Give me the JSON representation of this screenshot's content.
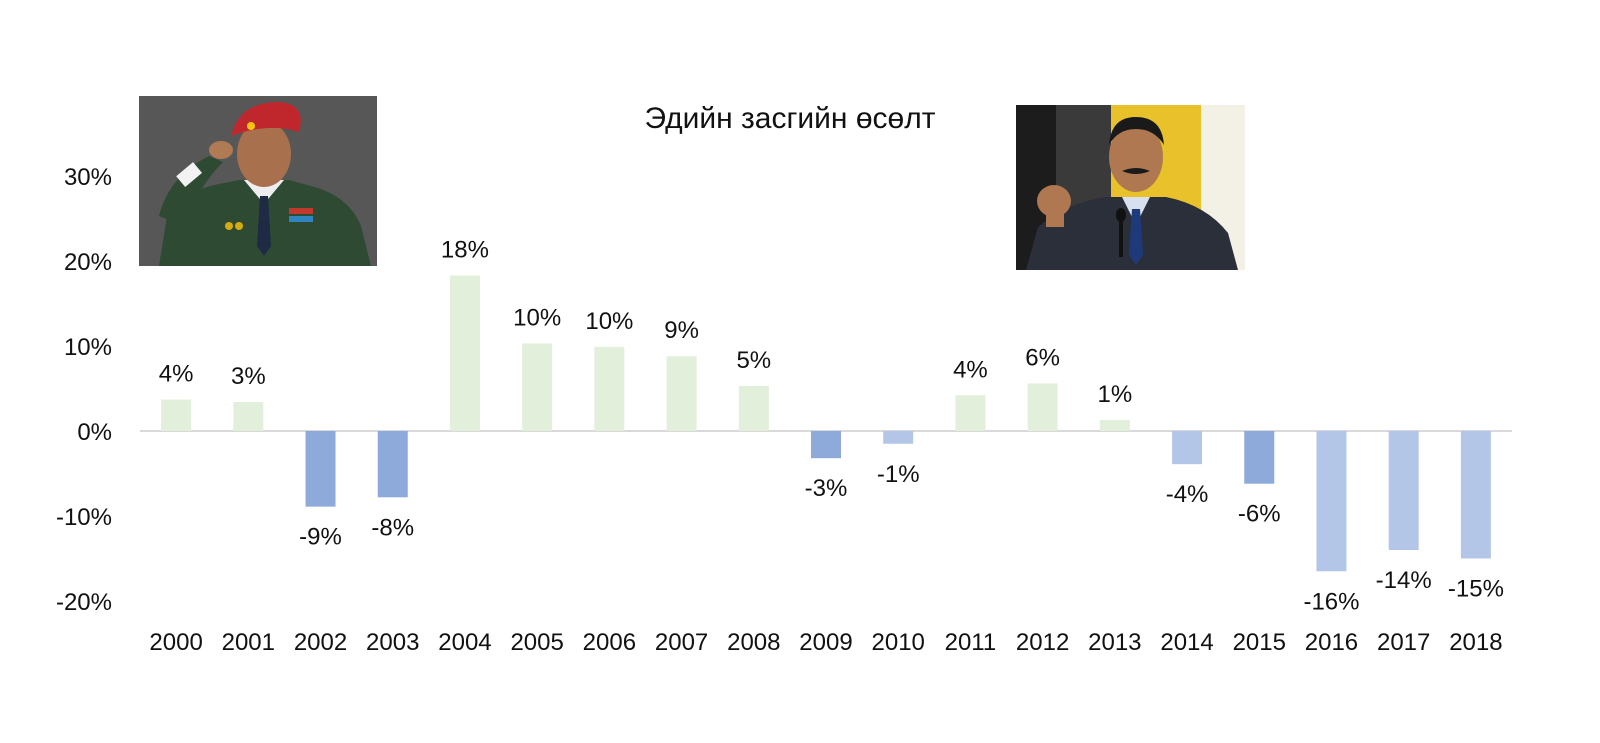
{
  "chart_data": {
    "type": "bar",
    "title": "Эдийн засгийн өсөлт",
    "xlabel": "",
    "ylabel": "",
    "ylim": [
      -20,
      30
    ],
    "yticks": [
      30,
      20,
      10,
      0,
      -10,
      -20
    ],
    "ytick_labels": [
      "30%",
      "20%",
      "10%",
      "0%",
      "-10%",
      "-20%"
    ],
    "categories": [
      "2000",
      "2001",
      "2002",
      "2003",
      "2004",
      "2005",
      "2006",
      "2007",
      "2008",
      "2009",
      "2010",
      "2011",
      "2012",
      "2013",
      "2014",
      "2015",
      "2016",
      "2017",
      "2018"
    ],
    "values": [
      3.7,
      3.4,
      -8.9,
      -7.8,
      18.3,
      10.3,
      9.9,
      8.8,
      5.3,
      -3.2,
      -1.5,
      4.2,
      5.6,
      1.3,
      -3.9,
      -6.2,
      -16.5,
      -14.0,
      -15.0
    ],
    "data_labels": [
      "4%",
      "3%",
      "-9%",
      "-8%",
      "18%",
      "10%",
      "10%",
      "9%",
      "5%",
      "-3%",
      "-1%",
      "4%",
      "6%",
      "1%",
      "-4%",
      "-6%",
      "-16%",
      "-14%",
      "-15%"
    ],
    "bar_colors": [
      "#e2efda",
      "#e2efda",
      "#8eaadb",
      "#8eaadb",
      "#e2efda",
      "#e2efda",
      "#e2efda",
      "#e2efda",
      "#e2efda",
      "#8eaadb",
      "#b4c6e7",
      "#e2efda",
      "#e2efda",
      "#e2efda",
      "#b4c6e7",
      "#8eaadb",
      "#b4c6e7",
      "#b4c6e7",
      "#b4c6e7"
    ],
    "grid": false,
    "legend": "none"
  },
  "images": {
    "left_photo": "saluting-man-in-military-uniform-with-red-beret",
    "right_photo": "man-in-suit-with-raised-fist"
  }
}
